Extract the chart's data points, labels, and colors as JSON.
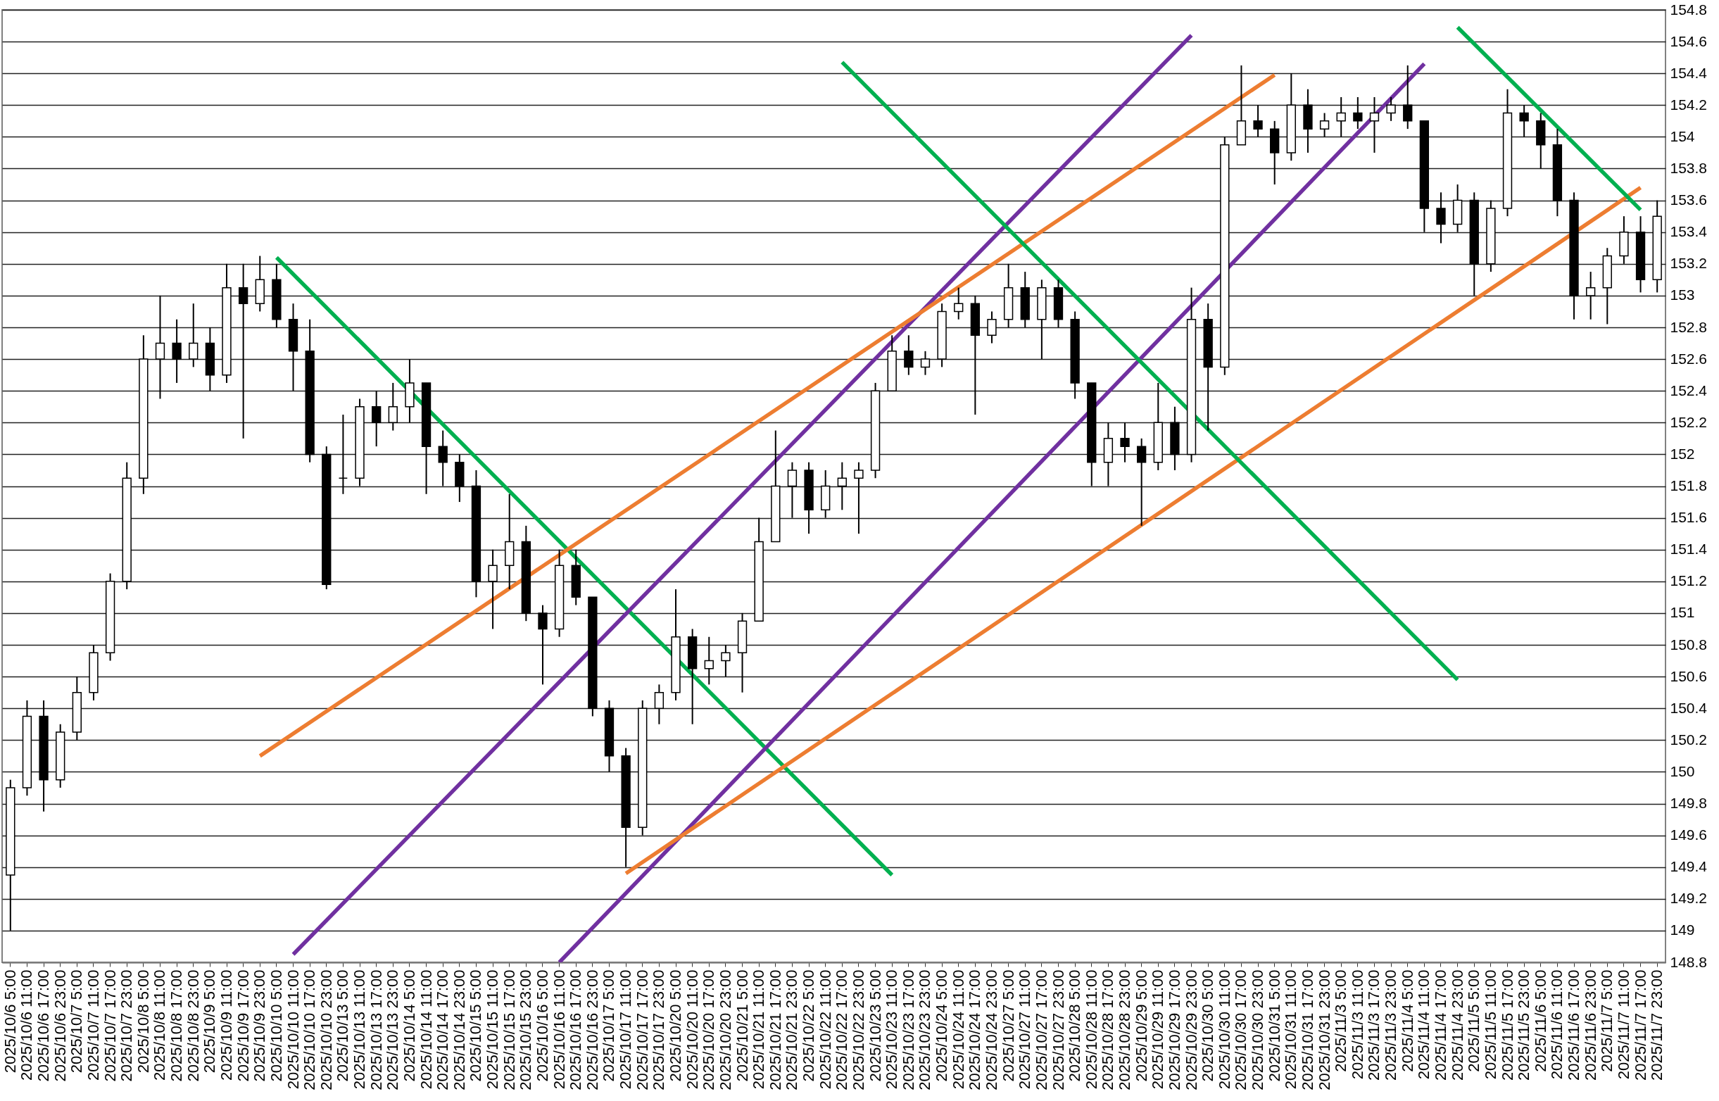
{
  "chart_data": {
    "type": "candlestick",
    "categories": [
      "2025/10/6 5:00",
      "2025/10/6 11:00",
      "2025/10/6 17:00",
      "2025/10/6 23:00",
      "2025/10/7 5:00",
      "2025/10/7 11:00",
      "2025/10/7 17:00",
      "2025/10/7 23:00",
      "2025/10/8 5:00",
      "2025/10/8 11:00",
      "2025/10/8 17:00",
      "2025/10/8 23:00",
      "2025/10/9 5:00",
      "2025/10/9 11:00",
      "2025/10/9 17:00",
      "2025/10/9 23:00",
      "2025/10/10 5:00",
      "2025/10/10 11:00",
      "2025/10/10 17:00",
      "2025/10/10 23:00",
      "2025/10/13 5:00",
      "2025/10/13 11:00",
      "2025/10/13 17:00",
      "2025/10/13 23:00",
      "2025/10/14 5:00",
      "2025/10/14 11:00",
      "2025/10/14 17:00",
      "2025/10/14 23:00",
      "2025/10/15 5:00",
      "2025/10/15 11:00",
      "2025/10/15 17:00",
      "2025/10/15 23:00",
      "2025/10/16 5:00",
      "2025/10/16 11:00",
      "2025/10/16 17:00",
      "2025/10/16 23:00",
      "2025/10/17 5:00",
      "2025/10/17 11:00",
      "2025/10/17 17:00",
      "2025/10/17 23:00",
      "2025/10/20 5:00",
      "2025/10/20 11:00",
      "2025/10/20 17:00",
      "2025/10/20 23:00",
      "2025/10/21 5:00",
      "2025/10/21 11:00",
      "2025/10/21 17:00",
      "2025/10/21 23:00",
      "2025/10/22 5:00",
      "2025/10/22 11:00",
      "2025/10/22 17:00",
      "2025/10/22 23:00",
      "2025/10/23 5:00",
      "2025/10/23 11:00",
      "2025/10/23 17:00",
      "2025/10/23 23:00",
      "2025/10/24 5:00",
      "2025/10/24 11:00",
      "2025/10/24 17:00",
      "2025/10/24 23:00",
      "2025/10/27 5:00",
      "2025/10/27 11:00",
      "2025/10/27 17:00",
      "2025/10/27 23:00",
      "2025/10/28 5:00",
      "2025/10/28 11:00",
      "2025/10/28 17:00",
      "2025/10/28 23:00",
      "2025/10/29 5:00",
      "2025/10/29 11:00",
      "2025/10/29 17:00",
      "2025/10/29 23:00",
      "2025/10/30 5:00",
      "2025/10/30 11:00",
      "2025/10/30 17:00",
      "2025/10/30 23:00",
      "2025/10/31 5:00",
      "2025/10/31 11:00",
      "2025/10/31 17:00",
      "2025/10/31 23:00",
      "2025/11/3 5:00",
      "2025/11/3 11:00",
      "2025/11/3 17:00",
      "2025/11/3 23:00",
      "2025/11/4 5:00",
      "2025/11/4 11:00",
      "2025/11/4 17:00",
      "2025/11/4 23:00",
      "2025/11/5 5:00",
      "2025/11/5 11:00",
      "2025/11/5 17:00",
      "2025/11/5 23:00",
      "2025/11/6 5:00",
      "2025/11/6 11:00",
      "2025/11/6 17:00",
      "2025/11/6 23:00",
      "2025/11/7 5:00",
      "2025/11/7 11:00",
      "2025/11/7 17:00",
      "2025/11/7 23:00"
    ],
    "ohlc": [
      [
        149.35,
        149.95,
        149.0,
        149.9
      ],
      [
        149.9,
        150.45,
        149.85,
        150.35
      ],
      [
        150.35,
        150.45,
        149.75,
        149.95
      ],
      [
        149.95,
        150.3,
        149.9,
        150.25
      ],
      [
        150.25,
        150.6,
        150.2,
        150.5
      ],
      [
        150.5,
        150.8,
        150.45,
        150.75
      ],
      [
        150.75,
        151.25,
        150.7,
        151.2
      ],
      [
        151.2,
        151.95,
        151.15,
        151.85
      ],
      [
        151.85,
        152.75,
        151.75,
        152.6
      ],
      [
        152.6,
        153.0,
        152.35,
        152.7
      ],
      [
        152.7,
        152.85,
        152.45,
        152.6
      ],
      [
        152.6,
        152.95,
        152.55,
        152.7
      ],
      [
        152.7,
        152.8,
        152.4,
        152.5
      ],
      [
        152.5,
        153.2,
        152.45,
        153.05
      ],
      [
        153.05,
        153.2,
        152.1,
        152.95
      ],
      [
        152.95,
        153.25,
        152.9,
        153.1
      ],
      [
        153.1,
        153.2,
        152.8,
        152.85
      ],
      [
        152.85,
        152.95,
        152.4,
        152.65
      ],
      [
        152.65,
        152.85,
        151.95,
        152.0
      ],
      [
        152.0,
        152.05,
        151.15,
        151.18
      ],
      [
        151.85,
        152.25,
        151.75,
        151.85
      ],
      [
        151.85,
        152.35,
        151.8,
        152.3
      ],
      [
        152.3,
        152.4,
        152.05,
        152.2
      ],
      [
        152.2,
        152.45,
        152.15,
        152.3
      ],
      [
        152.3,
        152.6,
        152.2,
        152.45
      ],
      [
        152.45,
        152.45,
        151.75,
        152.05
      ],
      [
        152.05,
        152.15,
        151.8,
        151.95
      ],
      [
        151.95,
        152.0,
        151.7,
        151.8
      ],
      [
        151.8,
        151.9,
        151.1,
        151.2
      ],
      [
        151.2,
        151.4,
        150.9,
        151.3
      ],
      [
        151.3,
        151.75,
        151.15,
        151.45
      ],
      [
        151.45,
        151.55,
        150.95,
        151.0
      ],
      [
        151.0,
        151.05,
        150.55,
        150.9
      ],
      [
        150.9,
        151.4,
        150.85,
        151.3
      ],
      [
        151.3,
        151.4,
        151.05,
        151.1
      ],
      [
        151.1,
        151.1,
        150.35,
        150.4
      ],
      [
        150.4,
        150.45,
        150.0,
        150.1
      ],
      [
        150.1,
        150.15,
        149.4,
        149.65
      ],
      [
        149.65,
        150.45,
        149.6,
        150.4
      ],
      [
        150.4,
        150.55,
        150.3,
        150.5
      ],
      [
        150.5,
        151.15,
        150.45,
        150.85
      ],
      [
        150.85,
        150.9,
        150.3,
        150.65
      ],
      [
        150.65,
        150.85,
        150.55,
        150.7
      ],
      [
        150.7,
        150.8,
        150.6,
        150.75
      ],
      [
        150.75,
        151.0,
        150.5,
        150.95
      ],
      [
        150.95,
        151.6,
        150.95,
        151.45
      ],
      [
        151.45,
        152.15,
        151.45,
        151.8
      ],
      [
        151.8,
        151.95,
        151.6,
        151.9
      ],
      [
        151.9,
        151.95,
        151.5,
        151.65
      ],
      [
        151.65,
        151.9,
        151.6,
        151.8
      ],
      [
        151.8,
        151.95,
        151.65,
        151.85
      ],
      [
        151.85,
        151.95,
        151.5,
        151.9
      ],
      [
        151.9,
        152.45,
        151.85,
        152.4
      ],
      [
        152.4,
        152.75,
        152.4,
        152.65
      ],
      [
        152.65,
        152.75,
        152.5,
        152.55
      ],
      [
        152.55,
        152.65,
        152.5,
        152.6
      ],
      [
        152.6,
        152.95,
        152.55,
        152.9
      ],
      [
        152.9,
        153.05,
        152.85,
        152.95
      ],
      [
        152.95,
        153.0,
        152.25,
        152.75
      ],
      [
        152.75,
        152.9,
        152.7,
        152.85
      ],
      [
        152.85,
        153.2,
        152.8,
        153.05
      ],
      [
        153.05,
        153.15,
        152.8,
        152.85
      ],
      [
        152.85,
        153.1,
        152.6,
        153.05
      ],
      [
        153.05,
        153.1,
        152.8,
        152.85
      ],
      [
        152.85,
        152.9,
        152.35,
        152.45
      ],
      [
        152.45,
        152.45,
        151.8,
        151.95
      ],
      [
        151.95,
        152.2,
        151.8,
        152.1
      ],
      [
        152.1,
        152.2,
        151.95,
        152.05
      ],
      [
        152.05,
        152.1,
        151.55,
        151.95
      ],
      [
        151.95,
        152.45,
        151.9,
        152.2
      ],
      [
        152.2,
        152.3,
        151.9,
        152.0
      ],
      [
        152.0,
        153.05,
        151.95,
        152.85
      ],
      [
        152.85,
        152.95,
        152.15,
        152.55
      ],
      [
        152.55,
        154.0,
        152.5,
        153.95
      ],
      [
        153.95,
        154.45,
        153.95,
        154.1
      ],
      [
        154.1,
        154.2,
        154.0,
        154.05
      ],
      [
        154.05,
        154.1,
        153.7,
        153.9
      ],
      [
        153.9,
        154.4,
        153.85,
        154.2
      ],
      [
        154.2,
        154.3,
        153.9,
        154.05
      ],
      [
        154.05,
        154.15,
        154.0,
        154.1
      ],
      [
        154.1,
        154.25,
        154.0,
        154.15
      ],
      [
        154.15,
        154.25,
        154.05,
        154.1
      ],
      [
        154.1,
        154.25,
        153.9,
        154.15
      ],
      [
        154.15,
        154.25,
        154.1,
        154.2
      ],
      [
        154.2,
        154.45,
        154.05,
        154.1
      ],
      [
        154.1,
        154.1,
        153.4,
        153.55
      ],
      [
        153.55,
        153.65,
        153.33,
        153.45
      ],
      [
        153.45,
        153.7,
        153.4,
        153.6
      ],
      [
        153.6,
        153.65,
        153.0,
        153.2
      ],
      [
        153.2,
        153.6,
        153.15,
        153.55
      ],
      [
        153.55,
        154.3,
        153.5,
        154.15
      ],
      [
        154.15,
        154.2,
        154.0,
        154.1
      ],
      [
        154.1,
        154.15,
        153.8,
        153.95
      ],
      [
        153.95,
        154.05,
        153.5,
        153.6
      ],
      [
        153.6,
        153.65,
        152.85,
        153.0
      ],
      [
        153.0,
        153.15,
        152.85,
        153.05
      ],
      [
        153.05,
        153.3,
        152.82,
        153.25
      ],
      [
        153.25,
        153.5,
        153.2,
        153.4
      ],
      [
        153.4,
        153.5,
        153.02,
        153.1
      ],
      [
        153.1,
        153.6,
        153.02,
        153.5
      ]
    ],
    "series": [
      {
        "type": "line",
        "color": "#00b050",
        "x": [
          "2025/10/10 5:00",
          "2025/10/23 11:00"
        ],
        "values": [
          153.24,
          149.35
        ]
      },
      {
        "type": "line",
        "color": "#7030a0",
        "x": [
          "2025/10/10 11:00",
          "2025/10/29 23:00"
        ],
        "values": [
          148.85,
          154.64
        ]
      },
      {
        "type": "line",
        "color": "#7030a0",
        "x": [
          "2025/10/16 11:00",
          "2025/11/4 11:00"
        ],
        "values": [
          148.8,
          154.46
        ]
      },
      {
        "type": "line",
        "color": "#ed7d31",
        "x": [
          "2025/10/9 23:00",
          "2025/10/31 5:00"
        ],
        "values": [
          150.1,
          154.39
        ]
      },
      {
        "type": "line",
        "color": "#ed7d31",
        "x": [
          "2025/10/17 11:00",
          "2025/11/7 17:00"
        ],
        "values": [
          149.36,
          153.68
        ]
      },
      {
        "type": "line",
        "color": "#00b050",
        "x": [
          "2025/10/22 17:00",
          "2025/11/4 23:00"
        ],
        "values": [
          154.47,
          150.58
        ]
      },
      {
        "type": "line",
        "color": "#00b050",
        "x": [
          "2025/11/4 23:00",
          "2025/11/7 17:00"
        ],
        "values": [
          154.69,
          153.54
        ]
      }
    ],
    "ylim": [
      148.8,
      154.8
    ],
    "yticks": [
      148.8,
      149,
      149.2,
      149.4,
      149.6,
      149.8,
      150,
      150.2,
      150.4,
      150.6,
      150.8,
      151,
      151.2,
      151.4,
      151.6,
      151.8,
      152,
      152.2,
      152.4,
      152.6,
      152.8,
      153,
      153.2,
      153.4,
      153.6,
      153.8,
      154,
      154.2,
      154.4,
      154.6,
      154.8
    ],
    "grid": "y"
  }
}
